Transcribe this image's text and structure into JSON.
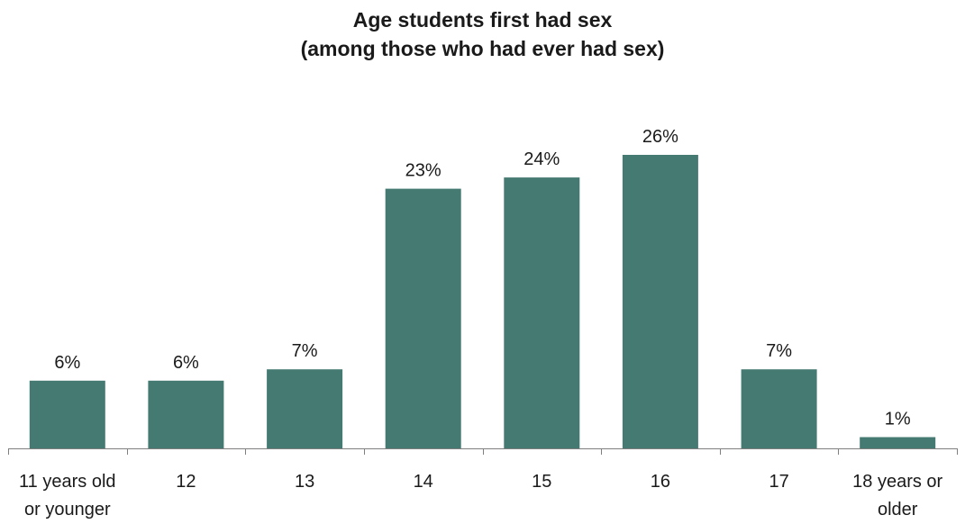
{
  "chart_data": {
    "type": "bar",
    "title": "Age students first had sex",
    "subtitle": "(among those who had ever had sex)",
    "categories": [
      [
        "11 years old",
        "or younger"
      ],
      [
        "12"
      ],
      [
        "13"
      ],
      [
        "14"
      ],
      [
        "15"
      ],
      [
        "16"
      ],
      [
        "17"
      ],
      [
        "18 years or",
        "older"
      ]
    ],
    "values": [
      6,
      6,
      7,
      23,
      24,
      26,
      7,
      1
    ],
    "value_labels": [
      "6%",
      "6%",
      "7%",
      "23%",
      "24%",
      "26%",
      "7%",
      "1%"
    ],
    "xlabel": "",
    "ylabel": "",
    "ylim": [
      0,
      26
    ],
    "grid": false,
    "legend": "none",
    "bar_color": "#457a72",
    "axis_color": "#7f7f7f"
  }
}
